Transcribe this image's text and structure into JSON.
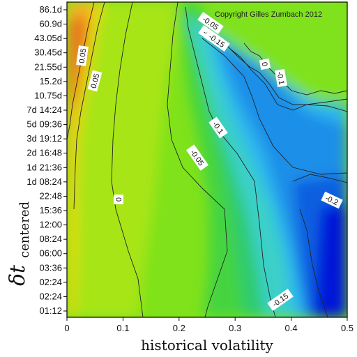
{
  "chart_data": {
    "type": "heatmap",
    "title": "",
    "annotation": "Copyright Gilles Zumbach 2012",
    "xlabel": "historical volatility",
    "ylabel": "δt",
    "ylabel_subscript": "centered",
    "xlim": [
      0,
      0.5
    ],
    "x_ticks": [
      "0",
      "0.1",
      "0.2",
      "0.3",
      "0.4",
      "0.5"
    ],
    "y_ticks": [
      "01:12",
      "02:24",
      "02:24",
      "03:36",
      "06:00",
      "08:24",
      "12:00",
      "15:36",
      "22:48",
      "1d 08:24",
      "1d 21:36",
      "2d 16:48",
      "3d 19:12",
      "5d 09:36",
      "7d 14:24",
      "10.75d",
      "15.2d",
      "21.55d",
      "30.45d",
      "43.05d",
      "60.9d",
      "86.1d"
    ],
    "y_scale": "logarithmic",
    "colormap": [
      "#0010d8",
      "#0a6ef0",
      "#33c8f5",
      "#33d3a8",
      "#26c85a",
      "#4fd73a",
      "#8be41f",
      "#d4e40f",
      "#f7b81a",
      "#e8701e",
      "#d13d1e"
    ],
    "contour_labels": [
      "0.05",
      "0.05",
      "0",
      "-0.05",
      "-0.1",
      "-0.15",
      "-0.2",
      "-0.15",
      "-0.05",
      "-0.15",
      "0",
      "-0.1"
    ]
  }
}
